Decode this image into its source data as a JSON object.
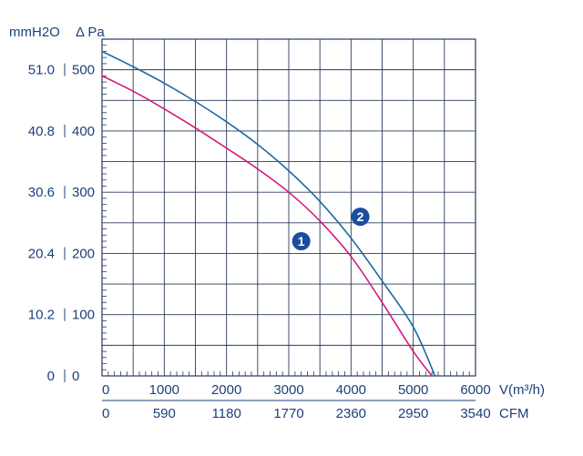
{
  "chart_data": {
    "type": "line",
    "title": "",
    "y_units": {
      "left": "mmH2O",
      "right": "Δ Pa"
    },
    "x_units": {
      "top": "V(m³/h)",
      "bottom": "CFM"
    },
    "xlim": [
      0,
      6000
    ],
    "ylim": [
      0,
      550
    ],
    "grid": true,
    "x_ticks_primary": [
      "0",
      "1000",
      "2000",
      "3000",
      "4000",
      "5000",
      "6000"
    ],
    "x_ticks_primary_values": [
      0,
      1000,
      2000,
      3000,
      4000,
      5000,
      6000
    ],
    "x_ticks_secondary": [
      "0",
      "590",
      "1180",
      "1770",
      "2360",
      "2950",
      "3540"
    ],
    "y_ticks_pa": [
      "0",
      "100",
      "200",
      "300",
      "400",
      "500"
    ],
    "y_ticks_pa_values": [
      0,
      100,
      200,
      300,
      400,
      500
    ],
    "y_ticks_mmh2o": [
      "0",
      "10.2",
      "20.4",
      "30.6",
      "40.8",
      "51.0"
    ],
    "series": [
      {
        "name": "1",
        "color": "#d6187c",
        "x": [
          0,
          500,
          1000,
          1500,
          2000,
          2500,
          3000,
          3500,
          4000,
          4500,
          5000,
          5300
        ],
        "y": [
          490,
          465,
          436,
          405,
          372,
          338,
          300,
          253,
          195,
          120,
          40,
          0
        ]
      },
      {
        "name": "2",
        "color": "#1c6ba3",
        "x": [
          0,
          500,
          1000,
          1500,
          2000,
          2500,
          3000,
          3500,
          4000,
          4500,
          5000,
          5350
        ],
        "y": [
          530,
          505,
          478,
          448,
          415,
          378,
          335,
          285,
          225,
          155,
          80,
          0
        ]
      }
    ],
    "markers": [
      {
        "label": "1",
        "color": "#1b4d9e",
        "x": 3200,
        "y": 220
      },
      {
        "label": "2",
        "color": "#1b4d9e",
        "x": 4150,
        "y": 260
      }
    ]
  }
}
